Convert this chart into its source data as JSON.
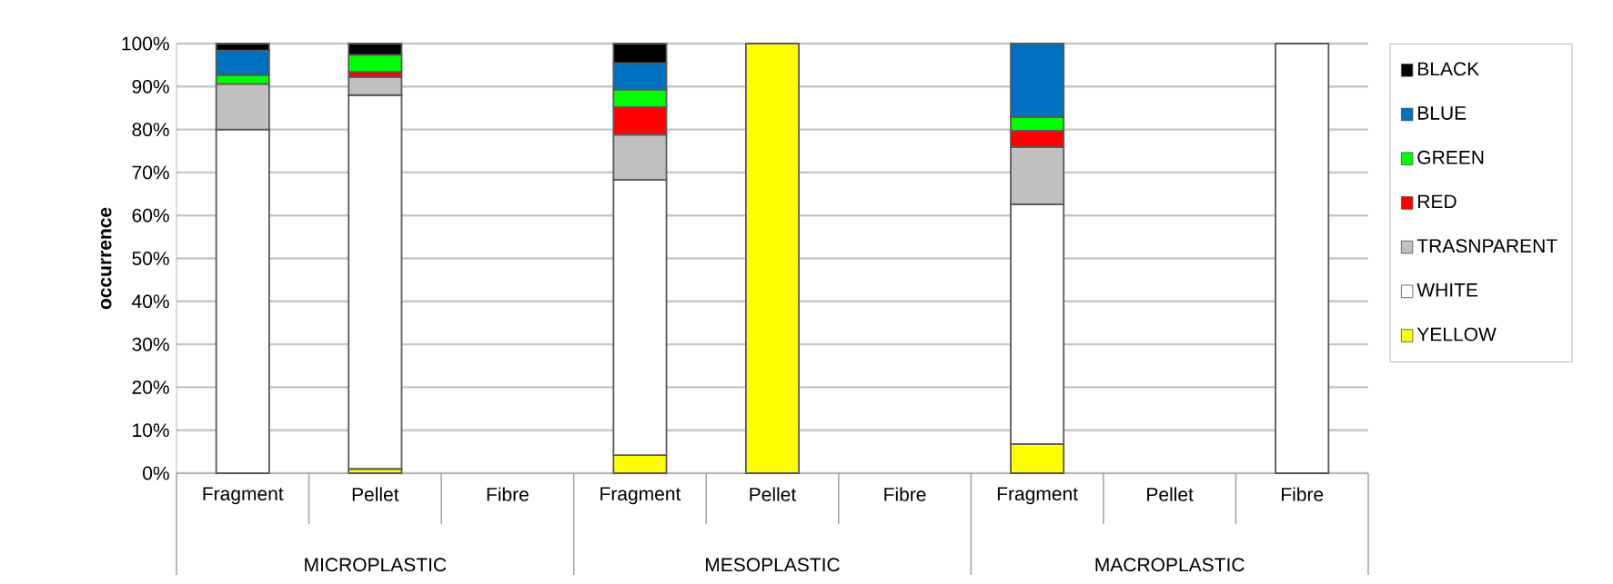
{
  "chart_data": {
    "type": "bar",
    "stacked": true,
    "ylabel": "occurrence",
    "categories": [
      "Fragment",
      "Pellet",
      "Fibre",
      "Fragment",
      "Pellet",
      "Fibre",
      "Fragment",
      "Pellet",
      "Fibre"
    ],
    "annotations": [
      "MICROPLASTIC",
      "MESOPLASTIC",
      "MACROPLASTIC"
    ],
    "series": [
      {
        "name": "YELLOW",
        "color": "#ffff00",
        "values": [
          null,
          1,
          null,
          4.2,
          100,
          null,
          6.8,
          null,
          null
        ]
      },
      {
        "name": "WHITE",
        "color": "#ffffff",
        "values": [
          80,
          87,
          null,
          64.1,
          null,
          null,
          55.8,
          null,
          100
        ]
      },
      {
        "name": "TRASNPARENT",
        "color": "#c0c0c0",
        "values": [
          10.6,
          4.2,
          null,
          10.5,
          null,
          null,
          13.3,
          null,
          null
        ]
      },
      {
        "name": "RED",
        "color": "#ff0000",
        "values": [
          null,
          1.2,
          null,
          6.4,
          null,
          null,
          3.8,
          null,
          null
        ]
      },
      {
        "name": "GREEN",
        "color": "#00ff00",
        "values": [
          2.1,
          4.0,
          null,
          4.1,
          null,
          null,
          3.2,
          null,
          null
        ]
      },
      {
        "name": "BLUE",
        "color": "#0070c0",
        "values": [
          5.7,
          null,
          null,
          6.2,
          null,
          null,
          17.1,
          null,
          null
        ]
      },
      {
        "name": "BLACK",
        "color": "#000000",
        "values": [
          1.6,
          2.6,
          null,
          4.5,
          null,
          null,
          null,
          null,
          null
        ]
      }
    ],
    "ylim": [
      0,
      100
    ],
    "yticks": [
      {
        "value": 0,
        "label": "0%"
      },
      {
        "value": 10,
        "label": "10%"
      },
      {
        "value": 20,
        "label": "20%"
      },
      {
        "value": 30,
        "label": "30%"
      },
      {
        "value": 40,
        "label": "40%"
      },
      {
        "value": 50,
        "label": "50%"
      },
      {
        "value": 60,
        "label": "60%"
      },
      {
        "value": 70,
        "label": "70%"
      },
      {
        "value": 80,
        "label": "80%"
      },
      {
        "value": 90,
        "label": "90%"
      },
      {
        "value": 100,
        "label": "100%"
      }
    ],
    "grid": "y",
    "legend": "right"
  }
}
